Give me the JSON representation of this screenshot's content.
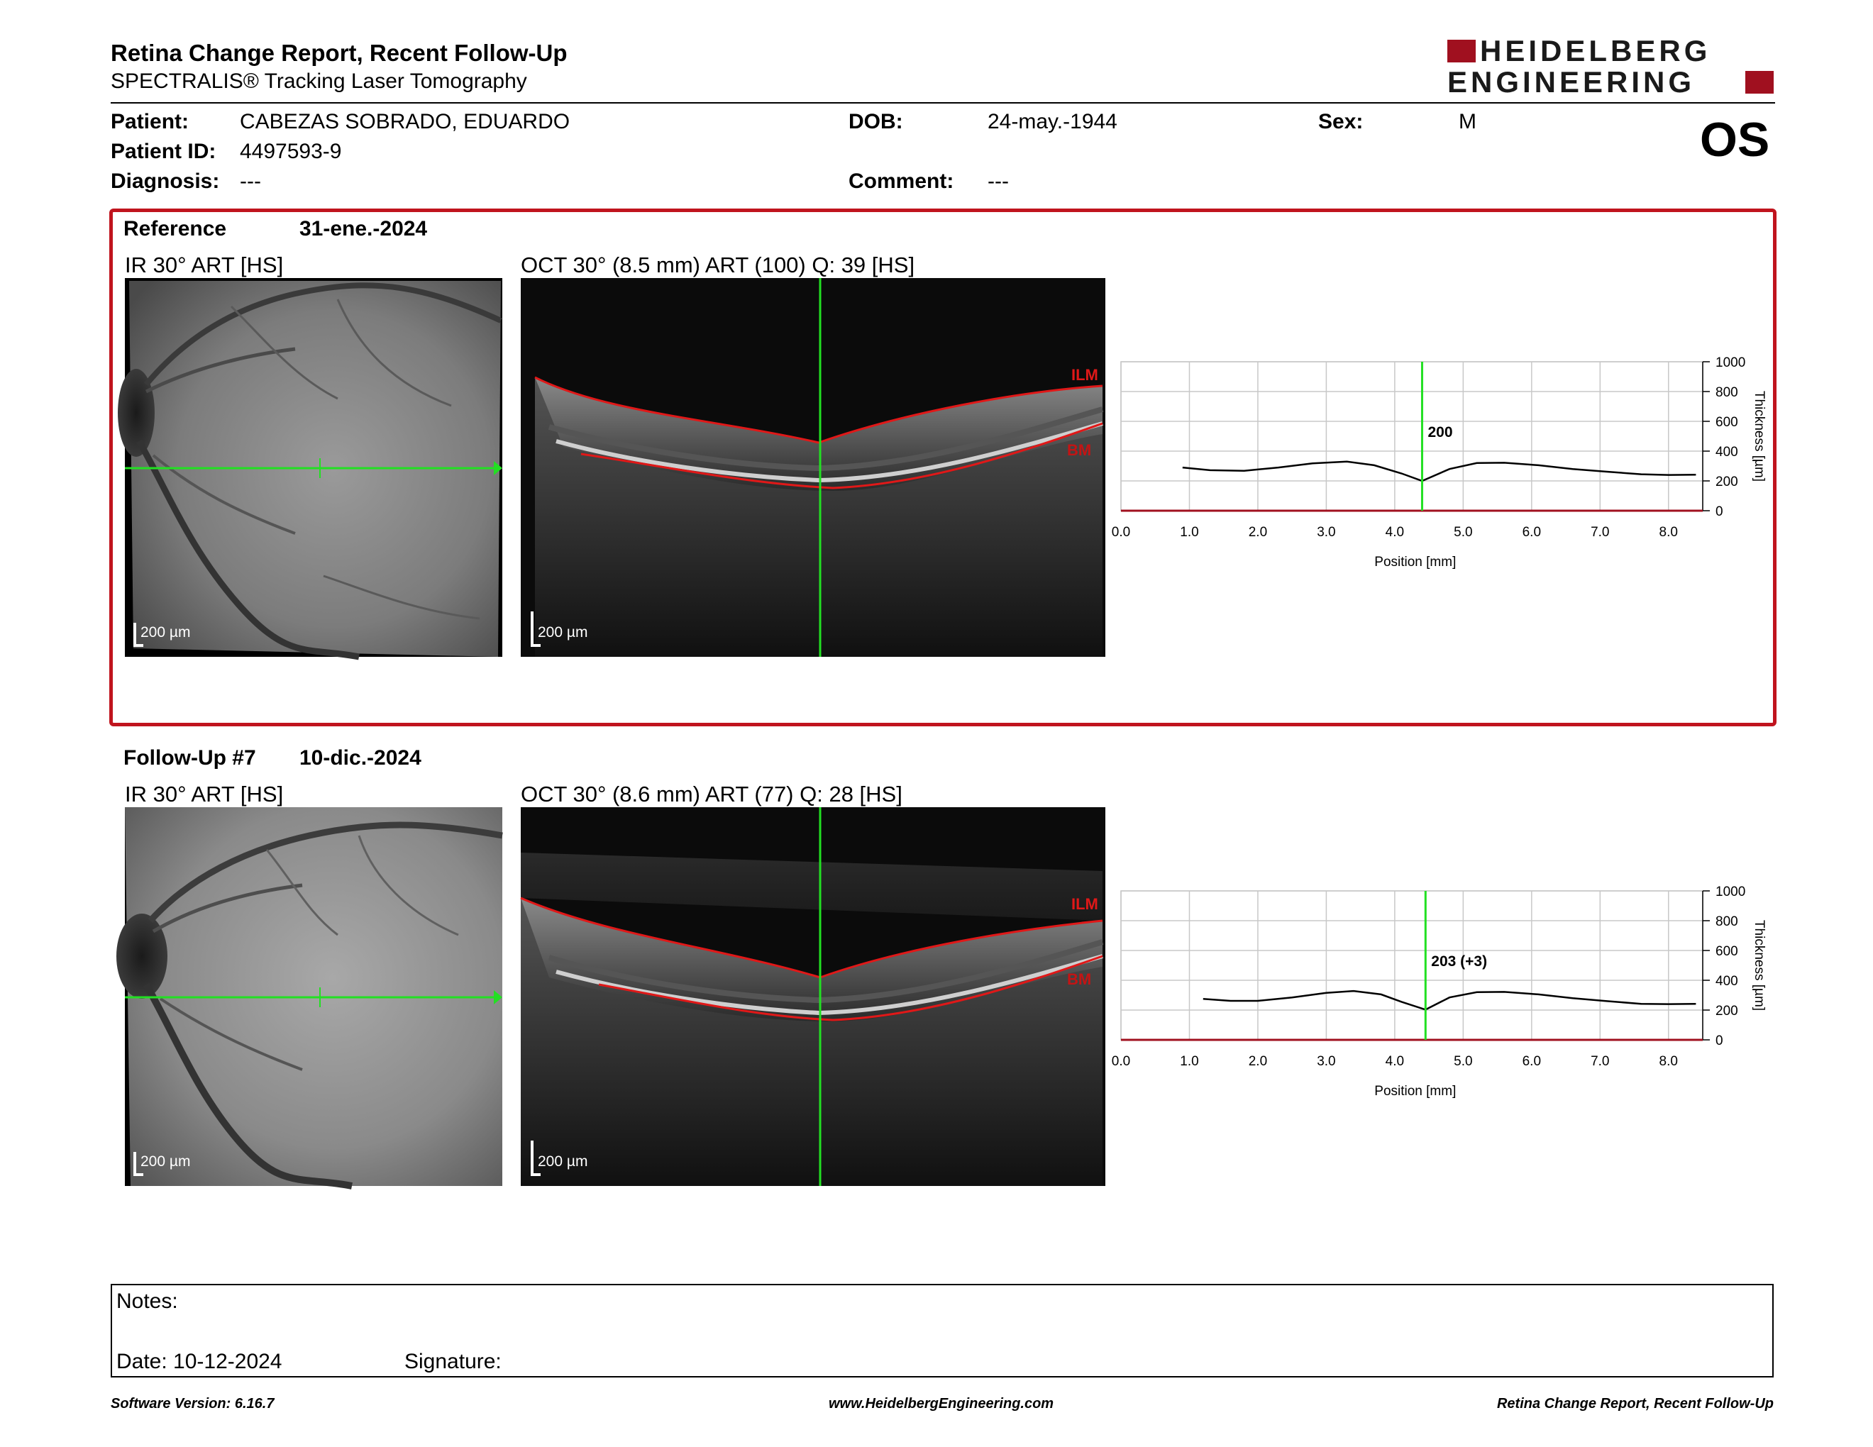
{
  "header": {
    "title": "Retina Change Report, Recent Follow-Up",
    "subtitle": "SPECTRALIS® Tracking Laser Tomography",
    "logo_line1": "HEIDELBERG",
    "logo_line2": "ENGINEERING",
    "brand_color": "#a0101f"
  },
  "patient": {
    "patient_label": "Patient:",
    "patient_value": "CABEZAS SOBRADO, EDUARDO",
    "id_label": "Patient ID:",
    "id_value": "4497593-9",
    "diagnosis_label": "Diagnosis:",
    "diagnosis_value": "---",
    "dob_label": "DOB:",
    "dob_value": "24-may.-1944",
    "comment_label": "Comment:",
    "comment_value": "---",
    "sex_label": "Sex:",
    "sex_value": "M",
    "eye": "OS"
  },
  "reference": {
    "label": "Reference",
    "date": "31-ene.-2024",
    "ir_title": "IR 30° ART [HS]",
    "oct_title": "OCT 30° (8.5 mm) ART (100) Q: 39 [HS]",
    "scale": "200 µm",
    "ilm": "ILM",
    "bm": "BM",
    "thickness_label": "200"
  },
  "followup": {
    "label": "Follow-Up #7",
    "date": "10-dic.-2024",
    "ir_title": "IR 30° ART [HS]",
    "oct_title": "OCT 30° (8.6 mm) ART (77) Q: 28 [HS]",
    "scale": "200 µm",
    "ilm": "ILM",
    "bm": "BM",
    "thickness_label": "203 (+3)"
  },
  "chart_data": [
    {
      "type": "line",
      "xlabel": "Position [mm]",
      "ylabel": "Thickness [µm]",
      "xlim": [
        0,
        8.5
      ],
      "ylim": [
        0,
        1000
      ],
      "xticks": [
        "0.0",
        "1.0",
        "2.0",
        "3.0",
        "4.0",
        "5.0",
        "6.0",
        "7.0",
        "8.0"
      ],
      "yticks": [
        "0",
        "200",
        "400",
        "600",
        "800",
        "1000"
      ],
      "cursor_x": 4.4,
      "cursor_value": "200",
      "x": [
        0.9,
        1.3,
        1.8,
        2.3,
        2.8,
        3.3,
        3.7,
        4.1,
        4.4,
        4.8,
        5.2,
        5.6,
        6.1,
        6.6,
        7.1,
        7.6,
        8.0,
        8.4
      ],
      "y": [
        290,
        272,
        268,
        290,
        318,
        330,
        305,
        250,
        200,
        280,
        320,
        322,
        305,
        280,
        262,
        245,
        240,
        242
      ]
    },
    {
      "type": "line",
      "xlabel": "Position [mm]",
      "ylabel": "Thickness [µm]",
      "xlim": [
        0,
        8.5
      ],
      "ylim": [
        0,
        1000
      ],
      "xticks": [
        "0.0",
        "1.0",
        "2.0",
        "3.0",
        "4.0",
        "5.0",
        "6.0",
        "7.0",
        "8.0"
      ],
      "yticks": [
        "0",
        "200",
        "400",
        "600",
        "800",
        "1000"
      ],
      "cursor_x": 4.45,
      "cursor_value": "203 (+3)",
      "x": [
        1.2,
        1.6,
        2.0,
        2.5,
        3.0,
        3.4,
        3.8,
        4.1,
        4.45,
        4.8,
        5.2,
        5.6,
        6.1,
        6.6,
        7.1,
        7.6,
        8.0,
        8.4
      ],
      "y": [
        275,
        262,
        262,
        285,
        315,
        328,
        305,
        255,
        203,
        285,
        320,
        322,
        305,
        280,
        260,
        242,
        240,
        242
      ]
    }
  ],
  "notes": {
    "notes_label": "Notes:",
    "date_label": "Date: 10-12-2024",
    "signature_label": "Signature:"
  },
  "footer": {
    "software": "Software Version: 6.16.7",
    "website": "www.HeidelbergEngineering.com",
    "report": "Retina Change Report, Recent Follow-Up"
  }
}
